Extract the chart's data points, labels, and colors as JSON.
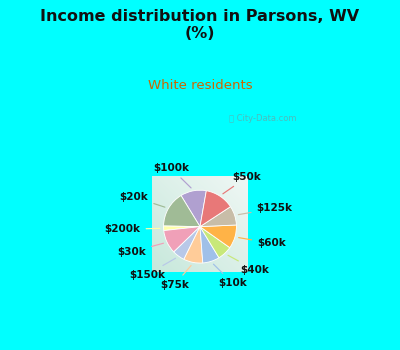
{
  "title": "Income distribution in Parsons, WV\n(%)",
  "subtitle": "White residents",
  "labels": [
    "$100k",
    "$20k",
    "$200k",
    "$30k",
    "$150k",
    "$75k",
    "$10k",
    "$40k",
    "$60k",
    "$125k",
    "$50k"
  ],
  "values": [
    11.5,
    16.0,
    2.0,
    10.5,
    5.5,
    8.5,
    7.5,
    6.5,
    10.5,
    8.5,
    13.0
  ],
  "colors": [
    "#b0a0d0",
    "#a0bb96",
    "#ffffaa",
    "#f0a0b8",
    "#b8c8e8",
    "#ffcc99",
    "#a0c0e8",
    "#c8e87a",
    "#ffb347",
    "#c8bda8",
    "#e87878"
  ],
  "bg_color": "#00ffff",
  "chart_bg_top": "#f0f8f5",
  "chart_bg_bottom": "#c8ead8",
  "title_color": "#111111",
  "subtitle_color": "#cc6600",
  "label_fontsize": 7.5,
  "startangle": 80
}
